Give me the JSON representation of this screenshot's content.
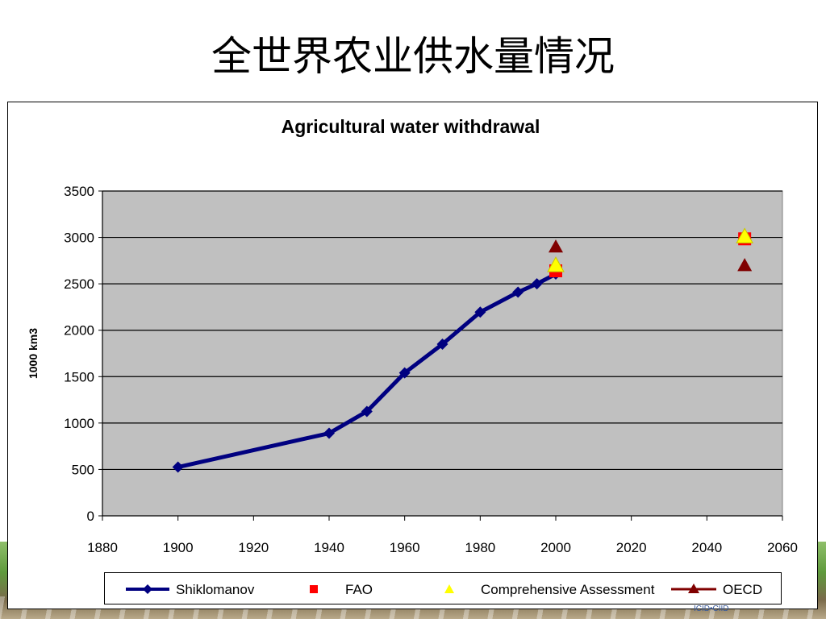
{
  "slide": {
    "title": "全世界农业供水量情况",
    "brand_mark": "ICID•CIID"
  },
  "chart_data": {
    "type": "line",
    "title": "Agricultural water withdrawal",
    "xlabel": "",
    "ylabel": "1000 km3",
    "xlim": [
      1880,
      2060
    ],
    "ylim": [
      0,
      3500
    ],
    "x_ticks": [
      1880,
      1900,
      1920,
      1940,
      1960,
      1980,
      2000,
      2020,
      2040,
      2060
    ],
    "y_ticks": [
      0,
      500,
      1000,
      1500,
      2000,
      2500,
      3000,
      3500
    ],
    "grid": "horizontal",
    "plot_background": "#c0c0c0",
    "legend_position": "bottom",
    "series": [
      {
        "name": "Shiklomanov",
        "color": "#000080",
        "marker": "diamond",
        "line": true,
        "points": [
          {
            "x": 1900,
            "y": 525
          },
          {
            "x": 1940,
            "y": 890
          },
          {
            "x": 1950,
            "y": 1125
          },
          {
            "x": 1960,
            "y": 1540
          },
          {
            "x": 1970,
            "y": 1850
          },
          {
            "x": 1980,
            "y": 2195
          },
          {
            "x": 1990,
            "y": 2410
          },
          {
            "x": 1995,
            "y": 2500
          },
          {
            "x": 2000,
            "y": 2605
          }
        ]
      },
      {
        "name": "FAO",
        "color": "#ff0000",
        "marker": "square",
        "line": false,
        "points": [
          {
            "x": 2000,
            "y": 2640
          },
          {
            "x": 2050,
            "y": 2985
          }
        ]
      },
      {
        "name": "Comprehensive Assessment",
        "color": "#ffff00",
        "marker": "triangle",
        "line": false,
        "points": [
          {
            "x": 2000,
            "y": 2700
          },
          {
            "x": 2050,
            "y": 3010
          }
        ]
      },
      {
        "name": "OECD",
        "color": "#800000",
        "marker": "triangle",
        "line": true,
        "points": [
          {
            "x": 2000,
            "y": 2900
          },
          {
            "x": 2050,
            "y": 2700
          }
        ]
      }
    ]
  }
}
